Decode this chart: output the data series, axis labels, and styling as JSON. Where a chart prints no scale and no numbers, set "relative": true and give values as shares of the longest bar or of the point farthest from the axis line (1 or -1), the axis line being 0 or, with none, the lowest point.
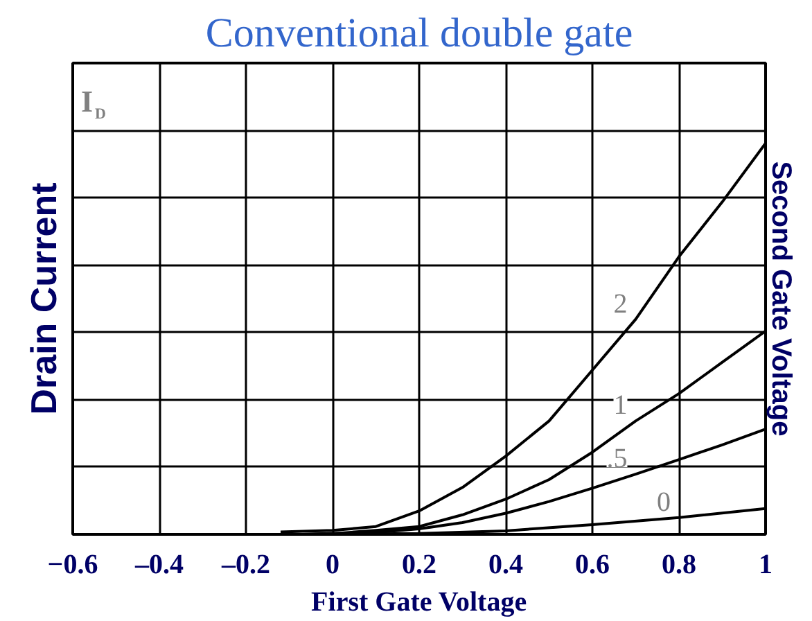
{
  "chart_data": {
    "type": "line",
    "relative": true,
    "title": "Conventional double gate",
    "xlabel": "First Gate Voltage",
    "ylabel": "Drain Current",
    "y2label": "Second Gate Voltage",
    "annotations": [
      "I$_{D}$"
    ],
    "xlim": [
      -0.6,
      1
    ],
    "xticks": [
      -0.6,
      {
        "value": -0.4,
        "label": "–0.4"
      },
      {
        "value": -0.2,
        "label": "–0.2"
      },
      0,
      0.2,
      0.4,
      0.6,
      0.8,
      1
    ],
    "grid": true,
    "marker": "none",
    "line_style": "solid",
    "series": [
      {
        "name": "2",
        "color": "#000000",
        "x": [
          -0.12,
          0,
          0.1,
          0.2,
          0.3,
          0.4,
          0.5,
          0.6,
          0.7,
          0.8,
          0.9,
          1
        ],
        "values": [
          0.006,
          0.01,
          0.02,
          0.06,
          0.12,
          0.2,
          0.29,
          0.42,
          0.55,
          0.71,
          0.85,
          1
        ]
      },
      {
        "name": "1",
        "color": "#000000",
        "x": [
          -0.07,
          0,
          0.1,
          0.2,
          0.3,
          0.4,
          0.5,
          0.6,
          0.7,
          0.8,
          0.9,
          1
        ],
        "values": [
          0,
          0.002,
          0.01,
          0.02,
          0.05,
          0.09,
          0.14,
          0.21,
          0.29,
          0.36,
          0.44,
          0.52
        ]
      },
      {
        "name": ".5",
        "color": "#000000",
        "x": [
          -0.07,
          0,
          0.1,
          0.2,
          0.3,
          0.4,
          0.5,
          0.6,
          0.7,
          0.8,
          0.9,
          1
        ],
        "values": [
          0,
          0.002,
          0.005,
          0.014,
          0.03,
          0.054,
          0.084,
          0.118,
          0.154,
          0.191,
          0.229,
          0.269
        ]
      },
      {
        "name": "0",
        "color": "#000000",
        "x": [
          -0.07,
          0.2,
          0.4,
          0.6,
          0.8,
          1
        ],
        "values": [
          0,
          0.002,
          0.009,
          0.025,
          0.043,
          0.066
        ]
      }
    ]
  }
}
